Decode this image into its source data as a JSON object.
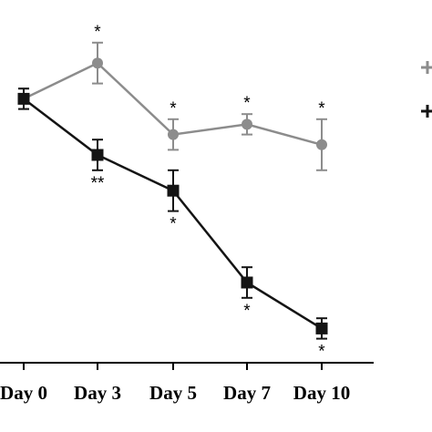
{
  "chart_data": {
    "type": "line",
    "categories": [
      "Day 0",
      "Day 3",
      "Day 5",
      "Day 7",
      "Day 10"
    ],
    "ylim": [
      0,
      1
    ],
    "grid": false,
    "legend": "right",
    "series": [
      {
        "color": "#8c8c8c",
        "marker": "circle",
        "values": [
          0.86,
          0.93,
          0.79,
          0.81,
          0.77
        ],
        "errors": [
          0.02,
          0.04,
          0.03,
          0.02,
          0.05
        ],
        "annotations": [
          "",
          "*",
          "*",
          "*",
          "*"
        ]
      },
      {
        "color": "#141414",
        "marker": "square",
        "values": [
          0.86,
          0.75,
          0.68,
          0.5,
          0.41
        ],
        "errors": [
          0.02,
          0.03,
          0.04,
          0.03,
          0.02
        ],
        "annotations": [
          "",
          "**",
          "*",
          "*",
          "*"
        ]
      }
    ]
  }
}
